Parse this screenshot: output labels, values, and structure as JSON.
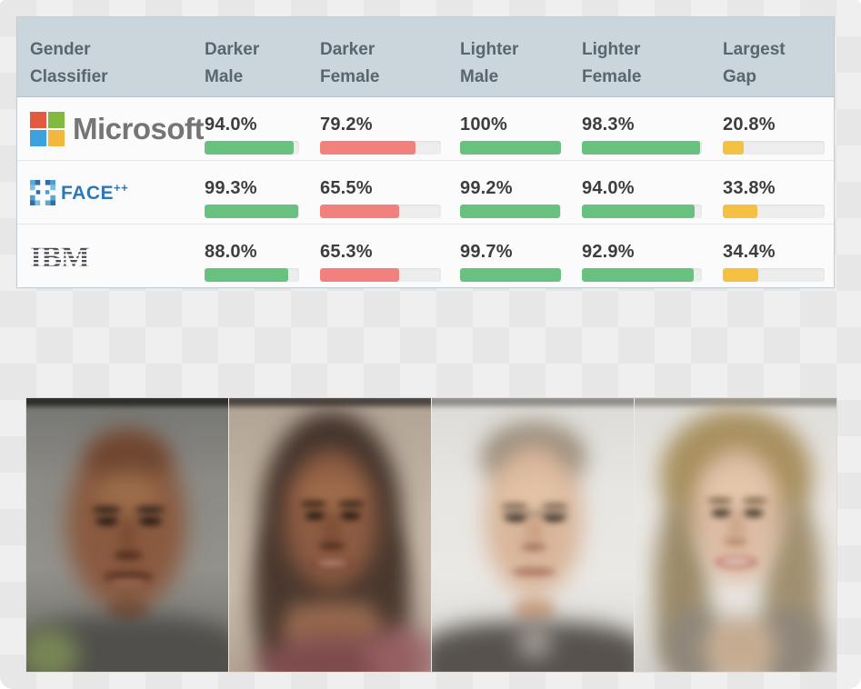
{
  "table": {
    "columns": [
      {
        "label_line1": "Gender",
        "label_line2": "Classifier"
      },
      {
        "label_line1": "Darker",
        "label_line2": "Male"
      },
      {
        "label_line1": "Darker",
        "label_line2": "Female"
      },
      {
        "label_line1": "Lighter",
        "label_line2": "Male"
      },
      {
        "label_line1": "Lighter",
        "label_line2": "Female"
      },
      {
        "label_line1": "Largest",
        "label_line2": "Gap"
      }
    ],
    "rows": [
      {
        "classifier": "Microsoft",
        "logo_text": "Microsoft",
        "cells": [
          {
            "value": "94.0%",
            "pct": 94.0,
            "color": "green"
          },
          {
            "value": "79.2%",
            "pct": 79.2,
            "color": "red"
          },
          {
            "value": "100%",
            "pct": 100,
            "color": "green"
          },
          {
            "value": "98.3%",
            "pct": 98.3,
            "color": "green"
          },
          {
            "value": "20.8%",
            "pct": 20.8,
            "color": "yellow"
          }
        ]
      },
      {
        "classifier": "FACE++",
        "logo_text": "FACE",
        "logo_sup": "++",
        "cells": [
          {
            "value": "99.3%",
            "pct": 99.3,
            "color": "green"
          },
          {
            "value": "65.5%",
            "pct": 65.5,
            "color": "red"
          },
          {
            "value": "99.2%",
            "pct": 99.2,
            "color": "green"
          },
          {
            "value": "94.0%",
            "pct": 94.0,
            "color": "green"
          },
          {
            "value": "33.8%",
            "pct": 33.8,
            "color": "yellow"
          }
        ]
      },
      {
        "classifier": "IBM",
        "logo_text": "IBM",
        "cells": [
          {
            "value": "88.0%",
            "pct": 88.0,
            "color": "green"
          },
          {
            "value": "65.3%",
            "pct": 65.3,
            "color": "red"
          },
          {
            "value": "99.7%",
            "pct": 99.7,
            "color": "green"
          },
          {
            "value": "92.9%",
            "pct": 92.9,
            "color": "green"
          },
          {
            "value": "34.4%",
            "pct": 34.4,
            "color": "yellow"
          }
        ]
      }
    ],
    "colors": {
      "green": "#68c17e",
      "red": "#f2807c",
      "yellow": "#f5c142",
      "track": "#ededed",
      "header_bg": "#cbd5dc",
      "header_text": "#57666f",
      "value_text": "#3d3d3d"
    },
    "logo_colors": {
      "microsoft_squares": [
        "#e25a41",
        "#83b93e",
        "#3aa3dc",
        "#f2b73c"
      ],
      "microsoft_text": "#757575",
      "faceplusplus_blue": "#3077b4",
      "ibm": "#4a4a55"
    }
  },
  "faces": {
    "panels": [
      "darker-male-average-face",
      "darker-female-average-face",
      "lighter-male-average-face",
      "lighter-female-average-face"
    ]
  },
  "chart_data": {
    "type": "table",
    "title": "Gender classifier accuracy by skin type and gender",
    "categories": [
      "Darker Male",
      "Darker Female",
      "Lighter Male",
      "Lighter Female",
      "Largest Gap"
    ],
    "series": [
      {
        "name": "Microsoft",
        "values": [
          94.0,
          79.2,
          100,
          98.3,
          20.8
        ]
      },
      {
        "name": "FACE++",
        "values": [
          99.3,
          65.5,
          99.2,
          94.0,
          33.8
        ]
      },
      {
        "name": "IBM",
        "values": [
          88.0,
          65.3,
          99.7,
          92.9,
          34.4
        ]
      }
    ],
    "value_format": "percent",
    "value_range": [
      0,
      100
    ],
    "bar_color_rule": "green = accuracy, red = low accuracy (darker female), yellow = largest gap column"
  }
}
